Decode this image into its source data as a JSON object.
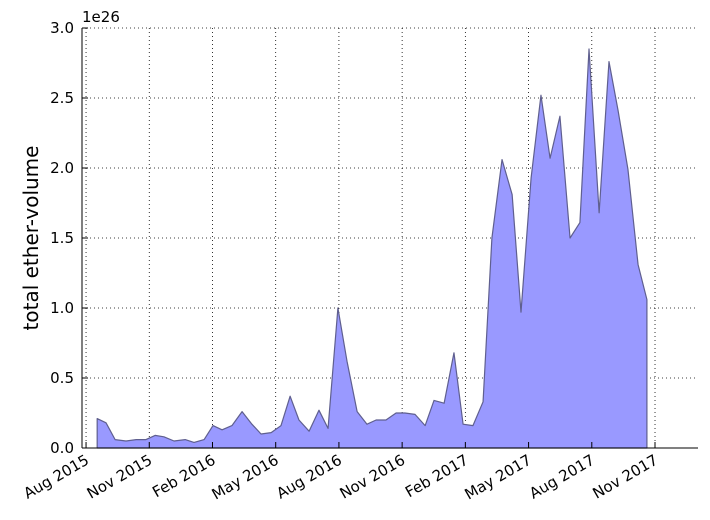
{
  "chart_data": {
    "type": "area",
    "y_label": "total ether-volume",
    "y_offset_text": "1e26",
    "x": [
      2015.627,
      2015.662,
      2015.698,
      2015.741,
      2015.781,
      2015.82,
      2015.856,
      2015.891,
      2015.931,
      2015.975,
      2016.01,
      2016.05,
      2016.085,
      2016.121,
      2016.16,
      2016.2,
      2016.239,
      2016.275,
      2016.315,
      2016.354,
      2016.39,
      2016.425,
      2016.465,
      2016.504,
      2016.54,
      2016.579,
      2016.615,
      2016.655,
      2016.694,
      2016.73,
      2016.769,
      2016.809,
      2016.844,
      2016.884,
      2016.924,
      2016.959,
      2016.999,
      2017.038,
      2017.074,
      2017.113,
      2017.153,
      2017.188,
      2017.228,
      2017.268,
      2017.303,
      2017.343,
      2017.382,
      2017.418,
      2017.457,
      2017.497,
      2017.536,
      2017.572,
      2017.612,
      2017.651,
      2017.687,
      2017.726,
      2017.766,
      2017.801
    ],
    "values": [
      0.21,
      0.18,
      0.06,
      0.05,
      0.06,
      0.06,
      0.09,
      0.08,
      0.05,
      0.06,
      0.04,
      0.06,
      0.16,
      0.13,
      0.16,
      0.26,
      0.17,
      0.1,
      0.11,
      0.16,
      0.37,
      0.2,
      0.12,
      0.27,
      0.14,
      1.0,
      0.62,
      0.26,
      0.17,
      0.2,
      0.2,
      0.25,
      0.25,
      0.24,
      0.16,
      0.34,
      0.32,
      0.68,
      0.17,
      0.16,
      0.33,
      1.5,
      2.06,
      1.81,
      0.97,
      1.93,
      2.52,
      2.07,
      2.37,
      1.5,
      1.61,
      2.85,
      1.68,
      2.76,
      2.41,
      1.99,
      1.31,
      1.06
    ],
    "color": "#9999ff",
    "edge_color": "#5f5f8f",
    "xlim": [
      2015.567,
      2018.003
    ],
    "ylim": [
      0,
      3.0
    ],
    "xticks": [
      {
        "value": 2015.583,
        "label": "Aug 2015"
      },
      {
        "value": 2015.833,
        "label": "Nov 2015"
      },
      {
        "value": 2016.083,
        "label": "Feb 2016"
      },
      {
        "value": 2016.333,
        "label": "May 2016"
      },
      {
        "value": 2016.583,
        "label": "Aug 2016"
      },
      {
        "value": 2016.833,
        "label": "Nov 2016"
      },
      {
        "value": 2017.083,
        "label": "Feb 2017"
      },
      {
        "value": 2017.333,
        "label": "May 2017"
      },
      {
        "value": 2017.583,
        "label": "Aug 2017"
      },
      {
        "value": 2017.833,
        "label": "Nov 2017"
      }
    ],
    "yticks": [
      {
        "value": 0,
        "label": "0.0"
      },
      0.5,
      {
        "value": 1,
        "label": "1.0"
      },
      1.5,
      {
        "value": 2,
        "label": "2.0"
      },
      2.5,
      {
        "value": 3,
        "label": "3.0"
      }
    ],
    "grid": true
  }
}
